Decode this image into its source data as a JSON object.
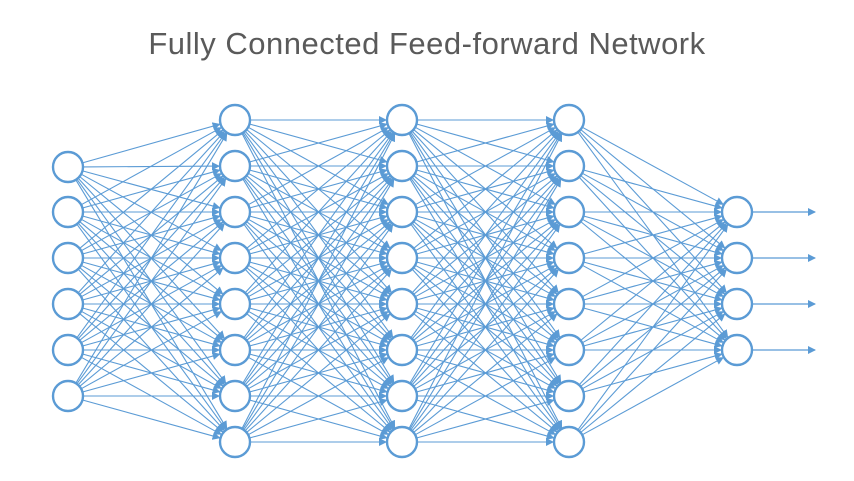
{
  "title": "Fully Connected Feed-forward Network",
  "network": {
    "layer_sizes": [
      6,
      8,
      8,
      8,
      4
    ],
    "output_arrows": 4
  },
  "colors": {
    "line": "#5b9bd5",
    "node_stroke": "#5b9bd5",
    "node_fill": "#ffffff",
    "title_text": "#5a5a5a"
  }
}
